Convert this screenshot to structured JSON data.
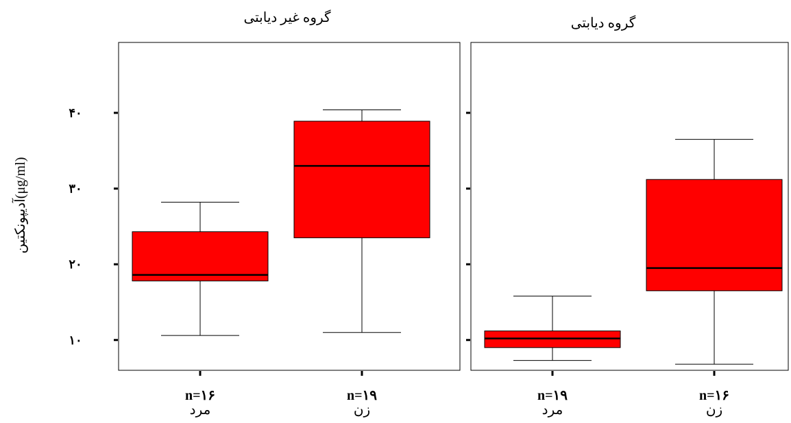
{
  "chart_data": {
    "type": "box",
    "ylabel": "آدیپونکتین(μg/ml)",
    "y_ticks": [
      10,
      20,
      30,
      40
    ],
    "y_tick_labels": [
      "۱۰",
      "۲۰",
      "۳۰",
      "۴۰"
    ],
    "ylim": [
      6,
      49.3
    ],
    "colors": {
      "box_fill": "#ff0000",
      "line": "#000000"
    },
    "panels": [
      {
        "title": "گروه غیر دیابتی",
        "boxes": [
          {
            "n_label": "n=۱۶",
            "group_label": "مرد",
            "min": 10.6,
            "q1": 17.8,
            "median": 18.6,
            "q3": 24.3,
            "max": 28.2
          },
          {
            "n_label": "n=۱۹",
            "group_label": "زن",
            "min": 11.0,
            "q1": 23.5,
            "median": 33.0,
            "q3": 38.9,
            "max": 40.4
          }
        ]
      },
      {
        "title": "گروه دیابتی",
        "boxes": [
          {
            "n_label": "n=۱۹",
            "group_label": "مرد",
            "min": 7.3,
            "q1": 9.0,
            "median": 10.2,
            "q3": 11.2,
            "max": 15.8
          },
          {
            "n_label": "n=۱۶",
            "group_label": "زن",
            "min": 6.8,
            "q1": 16.5,
            "median": 19.5,
            "q3": 31.2,
            "max": 36.5
          }
        ]
      }
    ]
  }
}
